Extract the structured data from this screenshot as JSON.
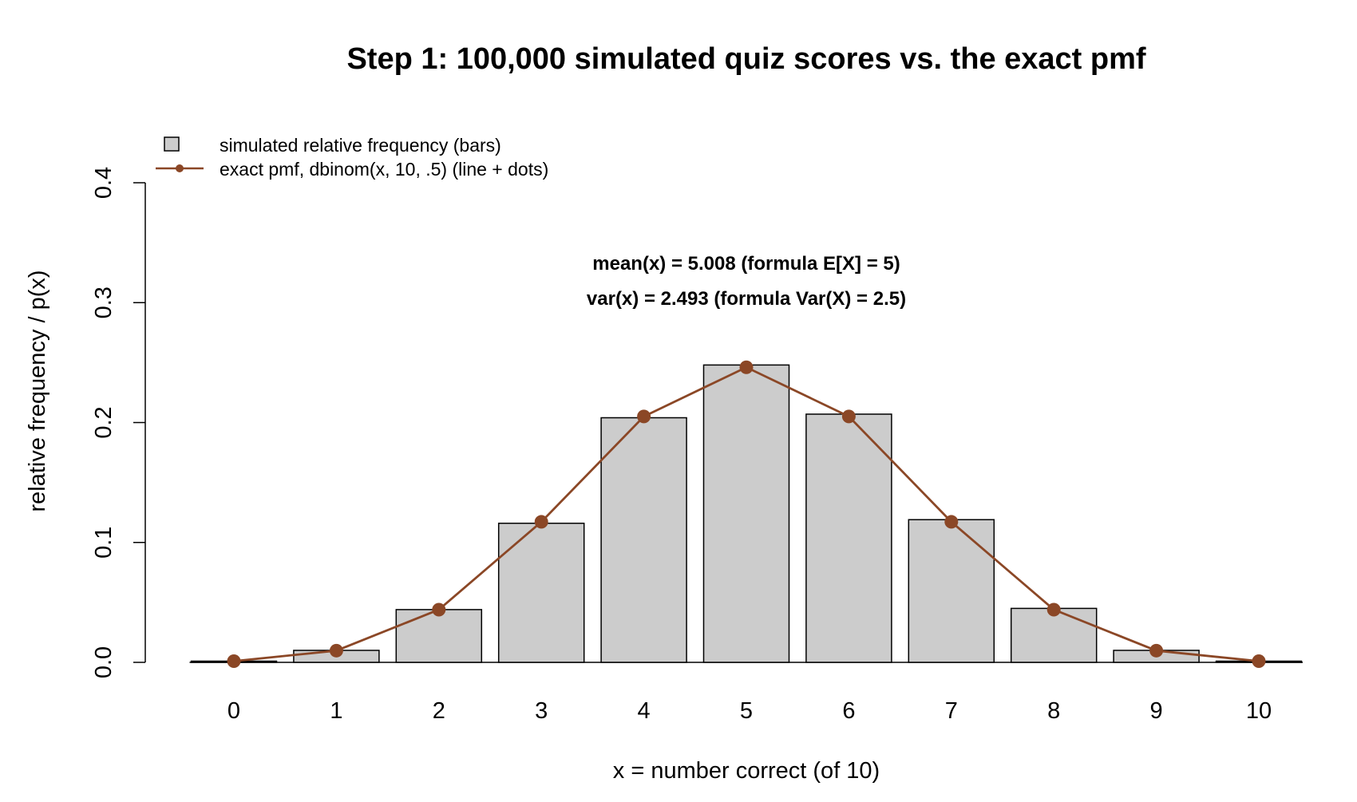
{
  "chart_data": {
    "type": "bar",
    "title": "Step 1: 100,000 simulated quiz scores vs. the exact pmf",
    "xlabel": "x = number correct (of 10)",
    "ylabel": "relative frequency / p(x)",
    "categories": [
      "0",
      "1",
      "2",
      "3",
      "4",
      "5",
      "6",
      "7",
      "8",
      "9",
      "10"
    ],
    "ylim": [
      0,
      0.4
    ],
    "yticks": [
      "0.0",
      "0.1",
      "0.2",
      "0.3",
      "0.4"
    ],
    "series": [
      {
        "name": "simulated relative frequency (bars)",
        "type": "bar",
        "values": [
          0.001,
          0.01,
          0.044,
          0.116,
          0.204,
          0.248,
          0.207,
          0.119,
          0.045,
          0.01,
          0.001
        ],
        "color": "#cccccc"
      },
      {
        "name": "exact pmf, dbinom(x, 10, .5) (line + dots)",
        "type": "line",
        "values": [
          0.000977,
          0.009766,
          0.043945,
          0.117188,
          0.205078,
          0.246094,
          0.205078,
          0.117188,
          0.043945,
          0.009766,
          0.000977
        ],
        "color": "#8B4726"
      }
    ],
    "annotations": [
      "mean(x) = 5.008  (formula E[X] = 5)",
      "var(x) = 2.493  (formula Var(X) = 2.5)"
    ],
    "legend_position": "top-left",
    "grid": false
  }
}
